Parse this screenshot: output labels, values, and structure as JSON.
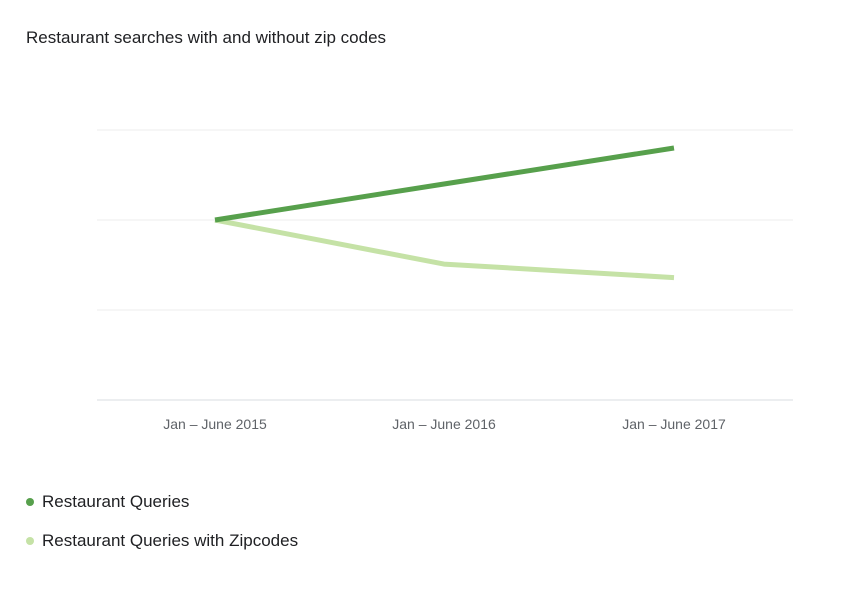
{
  "chart_data": {
    "type": "line",
    "title": "Restaurant searches with and without zip codes",
    "xlabel": "",
    "ylabel": "",
    "categories": [
      "Jan – June 2015",
      "Jan – June 2016",
      "Jan – June 2017"
    ],
    "ylim": [
      0,
      3
    ],
    "grid": true,
    "legend_placement": "bottom-left",
    "series": [
      {
        "name": "Restaurant Queries",
        "color": "#57a04c",
        "values": [
          2.0,
          2.4,
          2.8
        ]
      },
      {
        "name": "Restaurant Queries with Zipcodes",
        "color": "#c5e2a6",
        "values": [
          2.0,
          1.51,
          1.36
        ]
      }
    ]
  }
}
